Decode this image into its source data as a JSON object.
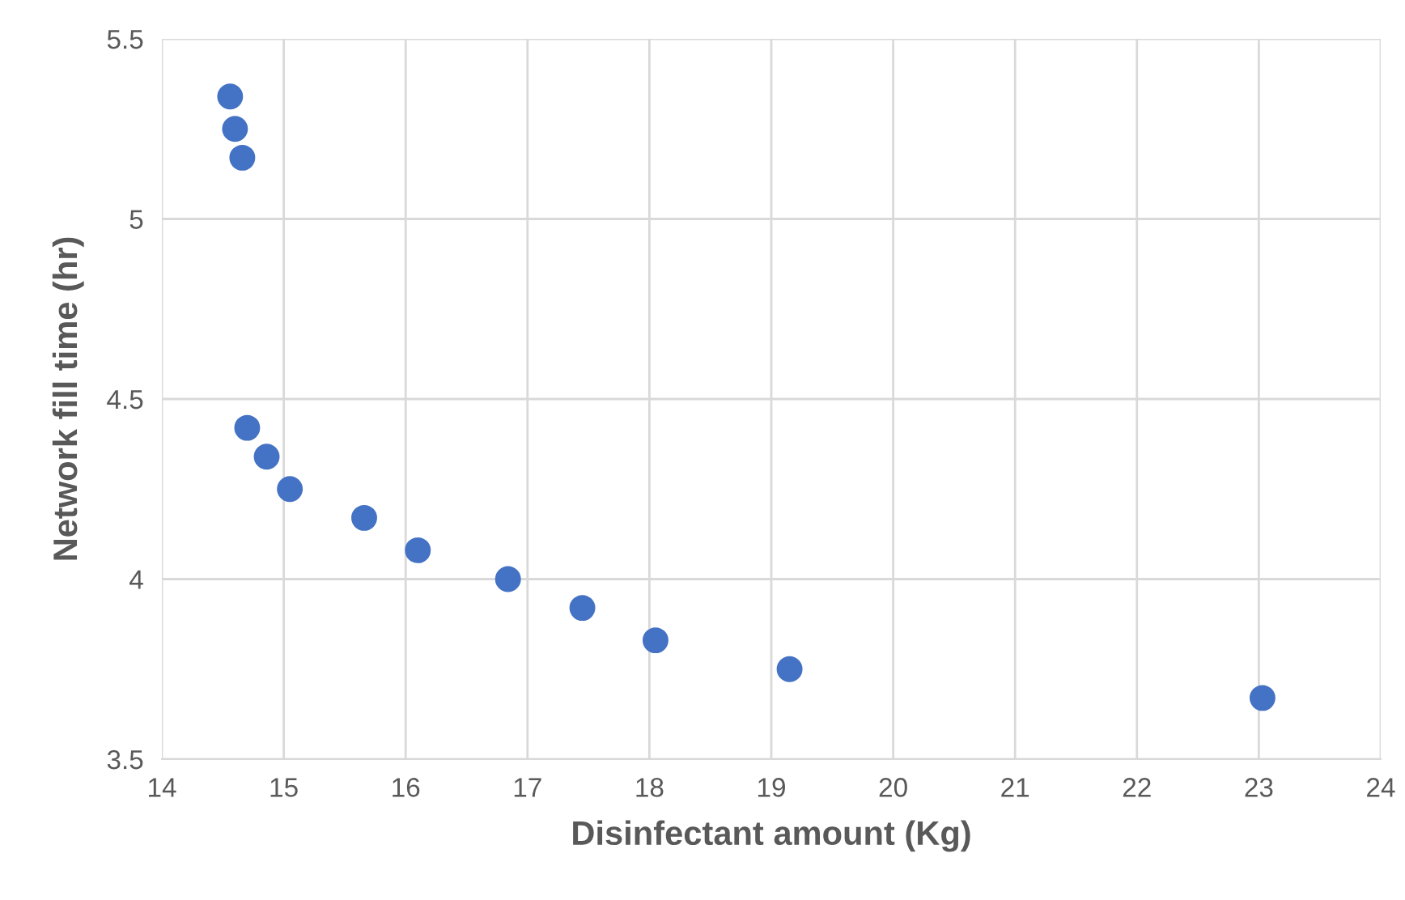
{
  "chart_data": {
    "type": "scatter",
    "xlabel": "Disinfectant amount (Kg)",
    "ylabel": "Network fill time (hr)",
    "x": [
      14.56,
      14.6,
      14.66,
      14.7,
      14.86,
      15.05,
      15.66,
      16.1,
      16.84,
      17.45,
      18.05,
      19.15,
      23.03
    ],
    "values": [
      5.34,
      5.25,
      5.17,
      4.42,
      4.34,
      4.25,
      4.17,
      4.08,
      4.0,
      3.92,
      3.83,
      3.75,
      3.67
    ],
    "color": "#4472c4",
    "marker": "circle",
    "xlim": [
      14,
      24
    ],
    "xticks": [
      14,
      15,
      16,
      17,
      18,
      19,
      20,
      21,
      22,
      23,
      24
    ],
    "ylim": [
      3.5,
      5.5
    ],
    "yticks": [
      3.5,
      4,
      4.5,
      5,
      5.5
    ],
    "grid": true
  }
}
